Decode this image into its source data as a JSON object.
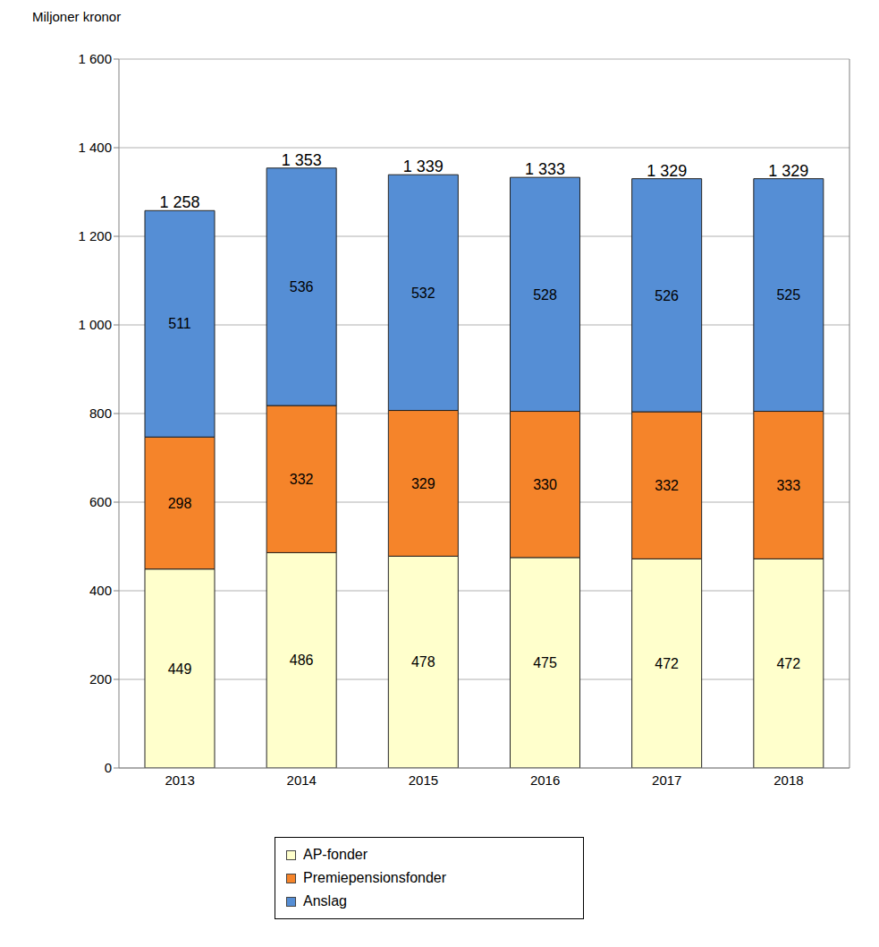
{
  "chart_data": {
    "type": "bar",
    "y_label": "Miljoner kronor",
    "categories": [
      "2013",
      "2014",
      "2015",
      "2016",
      "2017",
      "2018"
    ],
    "series": [
      {
        "name": "AP-fonder",
        "color": "#ffffcc",
        "values": [
          449,
          486,
          478,
          475,
          472,
          472
        ]
      },
      {
        "name": "Premiepensionsfonder",
        "color": "#f5842a",
        "values": [
          298,
          332,
          329,
          330,
          332,
          333
        ]
      },
      {
        "name": "Anslag",
        "color": "#558ed5",
        "values": [
          511,
          536,
          532,
          528,
          526,
          525
        ]
      }
    ],
    "totals": [
      1258,
      1353,
      1339,
      1333,
      1329,
      1329
    ],
    "total_labels": [
      "1 258",
      "1 353",
      "1 339",
      "1 333",
      "1 329",
      "1 329"
    ],
    "ylim": [
      0,
      1600
    ],
    "yticks": [
      0,
      200,
      400,
      600,
      800,
      {
        "value": 1000,
        "label": "1 000"
      },
      {
        "value": 1200,
        "label": "1 200"
      },
      {
        "value": 1400,
        "label": "1 400"
      },
      {
        "value": 1600,
        "label": "1 600"
      }
    ],
    "stacked": true,
    "data_labels": true,
    "grid": true,
    "legend": "bottom"
  }
}
